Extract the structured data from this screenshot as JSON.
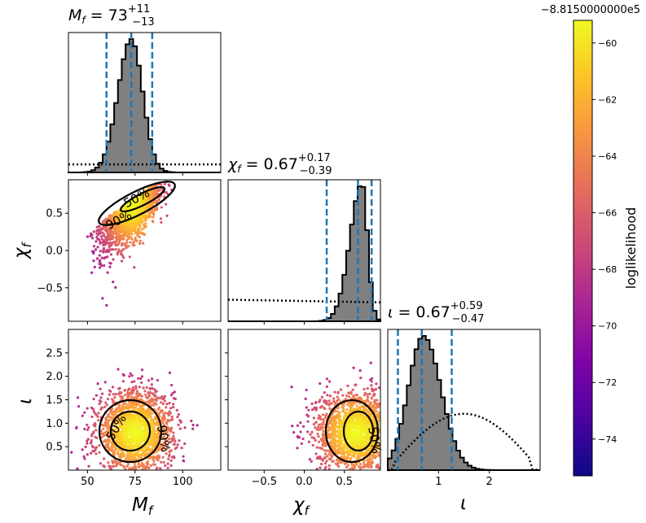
{
  "chart_data": {
    "type": "corner",
    "parameters": [
      {
        "symbol": "M_f",
        "range": [
          40,
          120
        ],
        "ticks": [
          50,
          75,
          100
        ],
        "tick_labels": [
          "50",
          "75",
          "100"
        ],
        "title": {
          "main": "M_f = 73",
          "sup": "+11",
          "sub": "−13"
        },
        "quantiles": [
          60,
          73,
          84
        ]
      },
      {
        "symbol": "χ_f",
        "range": [
          -0.95,
          0.95
        ],
        "ticks": [
          -0.5,
          0.0,
          0.5
        ],
        "tick_labels": [
          "−0.5",
          "0.0",
          "0.5"
        ],
        "title": {
          "main": "χ_f = 0.67",
          "sup": "+0.17",
          "sub": "−0.39"
        },
        "quantiles": [
          0.28,
          0.67,
          0.84
        ]
      },
      {
        "symbol": "ι",
        "range": [
          0.0,
          3.0
        ],
        "ticks": [
          0.5,
          1.0,
          1.5,
          2.0,
          2.5
        ],
        "x_ticks": [
          1,
          2
        ],
        "x_tick_labels": [
          "1",
          "2"
        ],
        "y_tick_labels": [
          "0.5",
          "1.0",
          "1.5",
          "2.0",
          "2.5"
        ],
        "title": {
          "main": "ι = 0.67",
          "sup": "+0.59",
          "sub": "−0.47"
        },
        "quantiles": [
          0.2,
          0.67,
          1.26
        ]
      }
    ],
    "axis_labels": {
      "x1": "M_f",
      "x2": "χ_f",
      "x3": "ι",
      "y2": "χ_f",
      "y3": "ι"
    },
    "histogram_style": {
      "posterior_fill": "#808080",
      "posterior_edge": "#000000",
      "prior": "dotted black",
      "quantile_lines": "#1f77b4"
    },
    "contour_labels": {
      "c50": "50%",
      "c90": "90%"
    },
    "scatter_clusters": {
      "mf_chi": {
        "center": [
          73,
          0.67
        ],
        "spread": [
          8,
          0.35
        ]
      },
      "mf_iota": {
        "center": [
          75,
          0.8
        ],
        "spread": [
          10,
          0.45
        ]
      },
      "chi_iota": {
        "center": [
          0.65,
          0.8
        ],
        "spread": [
          0.25,
          0.45
        ]
      }
    },
    "colorbar": {
      "label": "loglikelihood",
      "offset_text": "−8.8150000000e5",
      "range": [
        -75.3,
        -59.2
      ],
      "ticks": [
        -60,
        -62,
        -64,
        -66,
        -68,
        -70,
        -72,
        -74
      ],
      "tick_labels": [
        "−60",
        "−62",
        "−64",
        "−66",
        "−68",
        "−70",
        "−72",
        "−74"
      ],
      "colormap": "plasma"
    }
  }
}
